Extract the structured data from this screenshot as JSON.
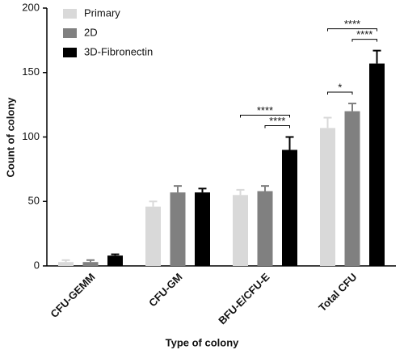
{
  "chart_data": {
    "type": "bar",
    "x_label": "Type of colony",
    "y_label": "Count of colony",
    "categories": [
      "CFU-GEMM",
      "CFU-GM",
      "BFU-E/CFU-E",
      "Total CFU"
    ],
    "series": [
      {
        "name": "Primary",
        "color": "#d9d9d9",
        "values": [
          3,
          46,
          55,
          107
        ],
        "errors": [
          1.5,
          4,
          4,
          8
        ]
      },
      {
        "name": "2D",
        "color": "#808080",
        "values": [
          3,
          57,
          58,
          120
        ],
        "errors": [
          1.5,
          5,
          4,
          6
        ]
      },
      {
        "name": "3D-Fibronectin",
        "color": "#000000",
        "values": [
          8,
          57,
          90,
          157
        ],
        "errors": [
          1,
          3,
          10,
          10
        ]
      }
    ],
    "ylim": [
      0,
      200
    ],
    "yticks": [
      0,
      50,
      100,
      150,
      200
    ],
    "legend": "upper left",
    "annotations": [
      {
        "category": "BFU-E/CFU-E",
        "from": "Primary",
        "to": "3D-Fibronectin",
        "label": "****"
      },
      {
        "category": "BFU-E/CFU-E",
        "from": "2D",
        "to": "3D-Fibronectin",
        "label": "****"
      },
      {
        "category": "Total CFU",
        "from": "Primary",
        "to": "2D",
        "label": "*"
      },
      {
        "category": "Total CFU",
        "from": "Primary",
        "to": "3D-Fibronectin",
        "label": "****"
      },
      {
        "category": "Total CFU",
        "from": "2D",
        "to": "3D-Fibronectin",
        "label": "****"
      }
    ]
  }
}
